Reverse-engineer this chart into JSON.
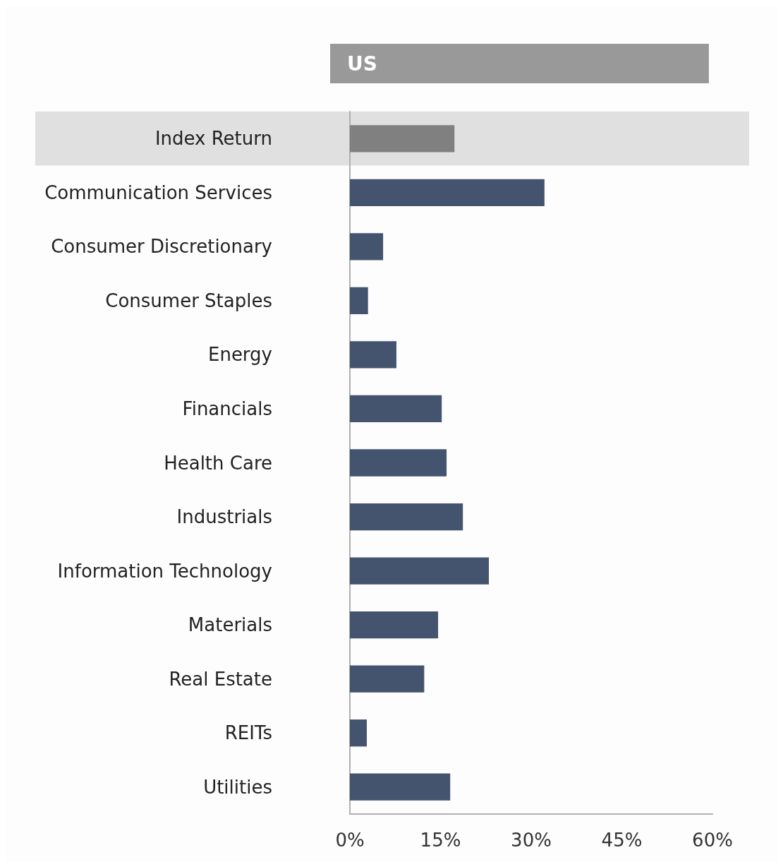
{
  "chart_data": {
    "type": "bar",
    "orientation": "horizontal",
    "title": "US",
    "categories": [
      "Index Return",
      "Communication Services",
      "Consumer Discretionary",
      "Consumer Staples",
      "Energy",
      "Financials",
      "Health Care",
      "Industrials",
      "Information Technology",
      "Materials",
      "Real Estate",
      "REITs",
      "Utilities"
    ],
    "values": [
      17.3,
      32.2,
      5.5,
      3.0,
      7.7,
      15.2,
      16.0,
      18.7,
      23.0,
      14.6,
      12.3,
      2.8,
      16.6
    ],
    "colors": [
      "#808080",
      "#44546f",
      "#44546f",
      "#44546f",
      "#44546f",
      "#44546f",
      "#44546f",
      "#44546f",
      "#44546f",
      "#44546f",
      "#44546f",
      "#44546f",
      "#44546f"
    ],
    "xlim": [
      0,
      60
    ],
    "xticks": [
      {
        "value": 0,
        "label": "0%"
      },
      {
        "value": 15,
        "label": "15%"
      },
      {
        "value": 30,
        "label": "30%"
      },
      {
        "value": 45,
        "label": "45%"
      },
      {
        "value": 60,
        "label": "60%"
      }
    ],
    "bands": [
      {
        "axis": "y",
        "from": "Index Return",
        "to": "Index Return",
        "color": "#e0e0e0"
      }
    ],
    "grid": false
  }
}
